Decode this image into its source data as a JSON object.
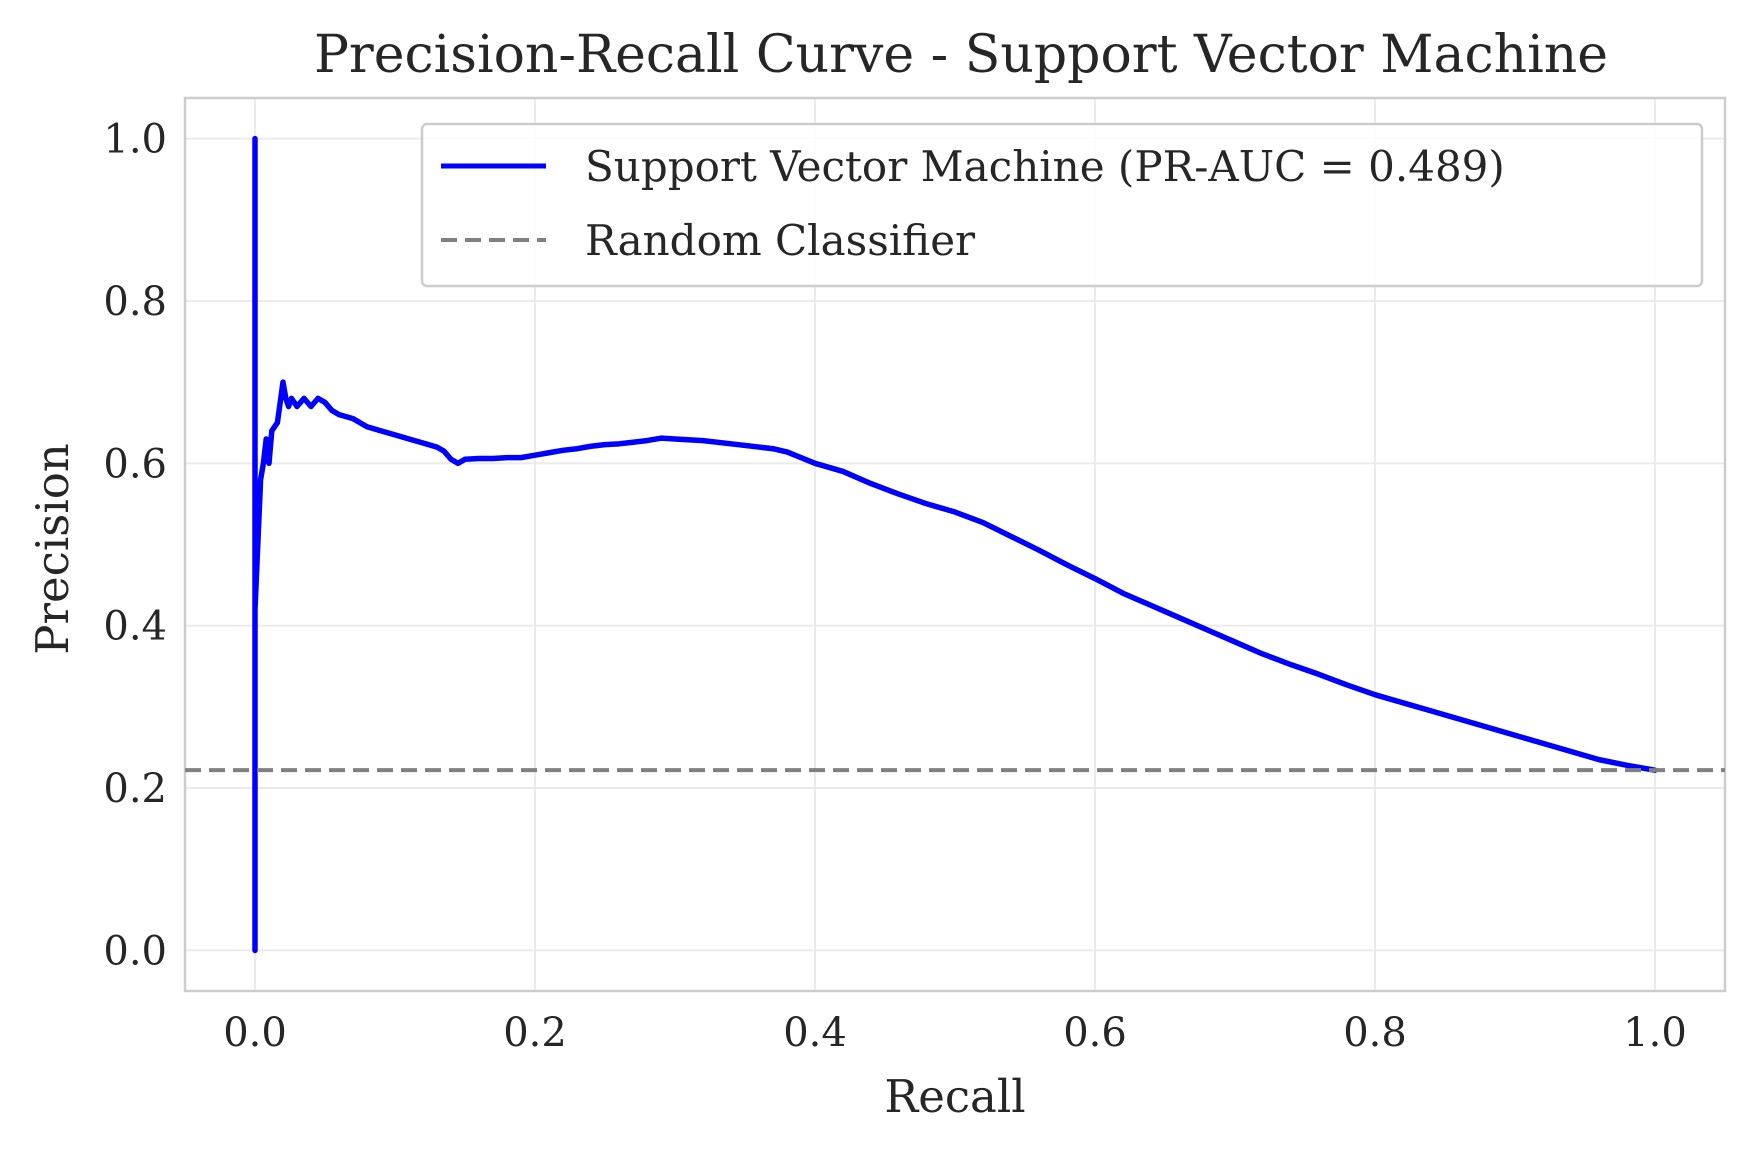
{
  "chart_data": {
    "type": "line",
    "title": "Precision-Recall Curve - Support Vector Machine",
    "xlabel": "Recall",
    "ylabel": "Precision",
    "xlim": [
      -0.05,
      1.05
    ],
    "ylim": [
      -0.05,
      1.05
    ],
    "xticks": [
      0.0,
      0.2,
      0.4,
      0.6,
      0.8,
      1.0
    ],
    "xtick_labels": [
      "0.0",
      "0.2",
      "0.4",
      "0.6",
      "0.8",
      "1.0"
    ],
    "yticks": [
      0.0,
      0.2,
      0.4,
      0.6,
      0.8,
      1.0
    ],
    "ytick_labels": [
      "0.0",
      "0.2",
      "0.4",
      "0.6",
      "0.8",
      "1.0"
    ],
    "grid": true,
    "legend_position": "top-right",
    "series": [
      {
        "name": "Support Vector Machine (PR-AUC = 0.489)",
        "color": "#0000ff",
        "style": "solid",
        "x": [
          0.0,
          0.0,
          0.0,
          0.0,
          0.004,
          0.006,
          0.008,
          0.01,
          0.012,
          0.016,
          0.02,
          0.022,
          0.024,
          0.026,
          0.03,
          0.035,
          0.04,
          0.045,
          0.05,
          0.055,
          0.06,
          0.07,
          0.08,
          0.09,
          0.1,
          0.11,
          0.12,
          0.13,
          0.135,
          0.14,
          0.145,
          0.15,
          0.16,
          0.17,
          0.18,
          0.19,
          0.2,
          0.21,
          0.22,
          0.23,
          0.24,
          0.25,
          0.26,
          0.27,
          0.28,
          0.29,
          0.3,
          0.32,
          0.34,
          0.36,
          0.37,
          0.38,
          0.4,
          0.42,
          0.44,
          0.46,
          0.48,
          0.5,
          0.52,
          0.54,
          0.56,
          0.58,
          0.6,
          0.62,
          0.64,
          0.66,
          0.68,
          0.7,
          0.72,
          0.74,
          0.76,
          0.78,
          0.8,
          0.82,
          0.84,
          0.86,
          0.88,
          0.9,
          0.92,
          0.94,
          0.96,
          0.98,
          1.0
        ],
        "y": [
          0.0,
          1.0,
          0.22,
          0.42,
          0.58,
          0.6,
          0.63,
          0.6,
          0.64,
          0.65,
          0.7,
          0.68,
          0.67,
          0.68,
          0.67,
          0.68,
          0.67,
          0.68,
          0.675,
          0.665,
          0.66,
          0.655,
          0.645,
          0.64,
          0.635,
          0.63,
          0.625,
          0.62,
          0.615,
          0.605,
          0.6,
          0.605,
          0.606,
          0.606,
          0.607,
          0.607,
          0.61,
          0.613,
          0.616,
          0.618,
          0.621,
          0.623,
          0.624,
          0.626,
          0.628,
          0.631,
          0.63,
          0.628,
          0.624,
          0.62,
          0.618,
          0.614,
          0.6,
          0.59,
          0.575,
          0.562,
          0.55,
          0.54,
          0.527,
          0.51,
          0.493,
          0.475,
          0.458,
          0.44,
          0.425,
          0.41,
          0.395,
          0.38,
          0.365,
          0.352,
          0.34,
          0.327,
          0.315,
          0.305,
          0.295,
          0.285,
          0.275,
          0.265,
          0.255,
          0.245,
          0.235,
          0.228,
          0.222
        ]
      },
      {
        "name": "Random Classifier",
        "color": "#808080",
        "style": "dashed",
        "x": [
          -0.05,
          1.05
        ],
        "y": [
          0.222,
          0.222
        ]
      }
    ]
  }
}
